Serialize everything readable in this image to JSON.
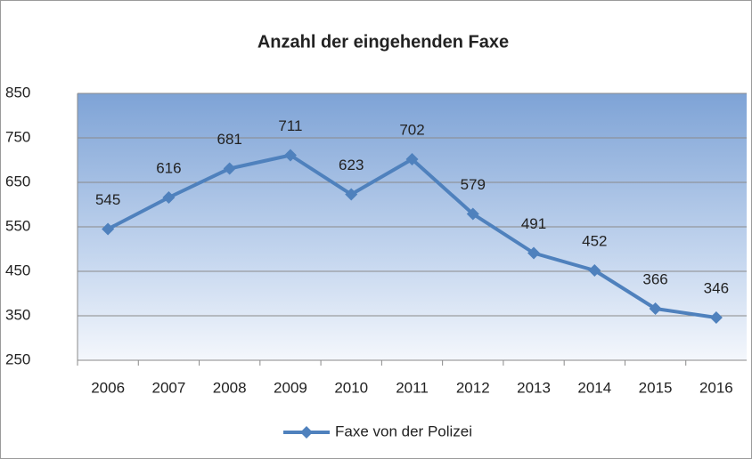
{
  "chart_data": {
    "type": "line",
    "title": "Anzahl der eingehenden Faxe",
    "categories": [
      "2006",
      "2007",
      "2008",
      "2009",
      "2010",
      "2011",
      "2012",
      "2013",
      "2014",
      "2015",
      "2016"
    ],
    "series": [
      {
        "name": "Faxe von der Polizei",
        "color": "#4f81bd",
        "values": [
          545,
          616,
          681,
          711,
          623,
          702,
          579,
          491,
          452,
          366,
          346
        ]
      }
    ],
    "ylim": [
      250,
      850
    ],
    "yticks": [
      250,
      350,
      450,
      550,
      650,
      750,
      850
    ],
    "grid": true,
    "legend": "bottom"
  }
}
